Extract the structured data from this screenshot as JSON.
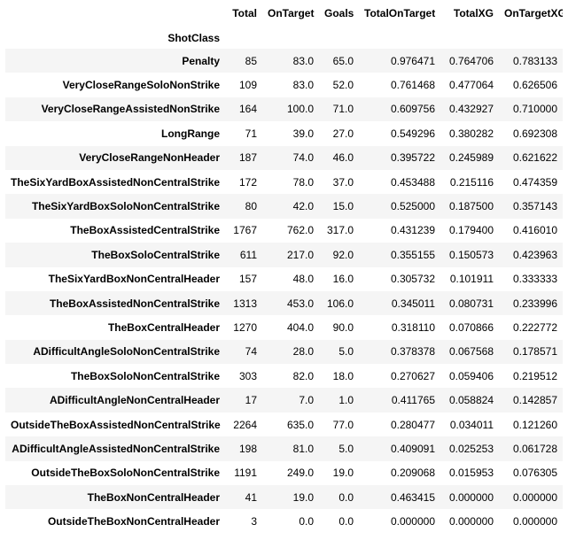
{
  "table": {
    "index_name": "ShotClass",
    "columns": [
      "Total",
      "OnTarget",
      "Goals",
      "TotalOnTarget",
      "TotalXG",
      "OnTargetXG"
    ],
    "rows": [
      [
        "Penalty",
        "85",
        "83.0",
        "65.0",
        "0.976471",
        "0.764706",
        "0.783133"
      ],
      [
        "VeryCloseRangeSoloNonStrike",
        "109",
        "83.0",
        "52.0",
        "0.761468",
        "0.477064",
        "0.626506"
      ],
      [
        "VeryCloseRangeAssistedNonStrike",
        "164",
        "100.0",
        "71.0",
        "0.609756",
        "0.432927",
        "0.710000"
      ],
      [
        "LongRange",
        "71",
        "39.0",
        "27.0",
        "0.549296",
        "0.380282",
        "0.692308"
      ],
      [
        "VeryCloseRangeNonHeader",
        "187",
        "74.0",
        "46.0",
        "0.395722",
        "0.245989",
        "0.621622"
      ],
      [
        "TheSixYardBoxAssistedNonCentralStrike",
        "172",
        "78.0",
        "37.0",
        "0.453488",
        "0.215116",
        "0.474359"
      ],
      [
        "TheSixYardBoxSoloNonCentralStrike",
        "80",
        "42.0",
        "15.0",
        "0.525000",
        "0.187500",
        "0.357143"
      ],
      [
        "TheBoxAssistedCentralStrike",
        "1767",
        "762.0",
        "317.0",
        "0.431239",
        "0.179400",
        "0.416010"
      ],
      [
        "TheBoxSoloCentralStrike",
        "611",
        "217.0",
        "92.0",
        "0.355155",
        "0.150573",
        "0.423963"
      ],
      [
        "TheSixYardBoxNonCentralHeader",
        "157",
        "48.0",
        "16.0",
        "0.305732",
        "0.101911",
        "0.333333"
      ],
      [
        "TheBoxAssistedNonCentralStrike",
        "1313",
        "453.0",
        "106.0",
        "0.345011",
        "0.080731",
        "0.233996"
      ],
      [
        "TheBoxCentralHeader",
        "1270",
        "404.0",
        "90.0",
        "0.318110",
        "0.070866",
        "0.222772"
      ],
      [
        "ADifficultAngleSoloNonCentralStrike",
        "74",
        "28.0",
        "5.0",
        "0.378378",
        "0.067568",
        "0.178571"
      ],
      [
        "TheBoxSoloNonCentralStrike",
        "303",
        "82.0",
        "18.0",
        "0.270627",
        "0.059406",
        "0.219512"
      ],
      [
        "ADifficultAngleNonCentralHeader",
        "17",
        "7.0",
        "1.0",
        "0.411765",
        "0.058824",
        "0.142857"
      ],
      [
        "OutsideTheBoxAssistedNonCentralStrike",
        "2264",
        "635.0",
        "77.0",
        "0.280477",
        "0.034011",
        "0.121260"
      ],
      [
        "ADifficultAngleAssistedNonCentralStrike",
        "198",
        "81.0",
        "5.0",
        "0.409091",
        "0.025253",
        "0.061728"
      ],
      [
        "OutsideTheBoxSoloNonCentralStrike",
        "1191",
        "249.0",
        "19.0",
        "0.209068",
        "0.015953",
        "0.076305"
      ],
      [
        "TheBoxNonCentralHeader",
        "41",
        "19.0",
        "0.0",
        "0.463415",
        "0.000000",
        "0.000000"
      ],
      [
        "OutsideTheBoxNonCentralHeader",
        "3",
        "0.0",
        "0.0",
        "0.000000",
        "0.000000",
        "0.000000"
      ]
    ]
  }
}
